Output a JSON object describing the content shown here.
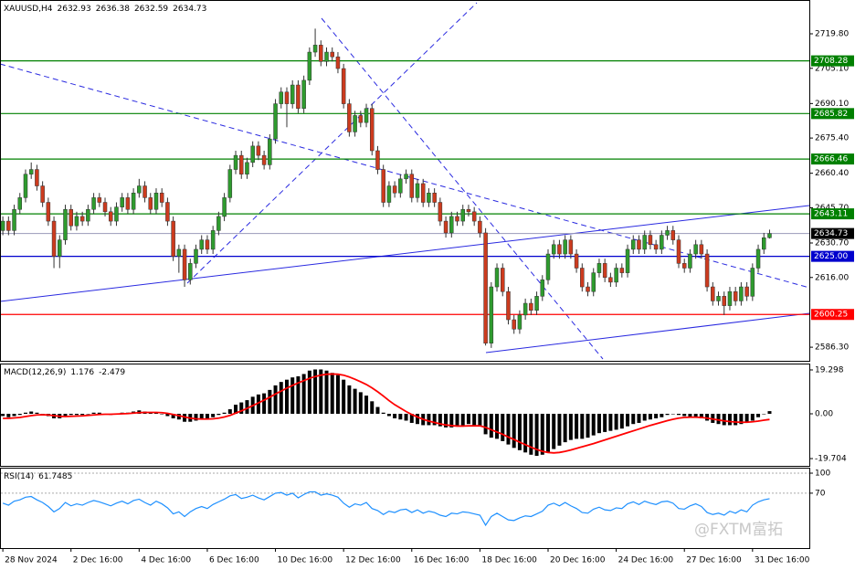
{
  "chart_data": [
    {
      "type": "candlestick",
      "title": "XAUUSD,H4",
      "up_color": "#2e9b2e",
      "down_color": "#cc3b1e",
      "xlim": [
        -0.5,
        142
      ],
      "ylim": [
        2580.5,
        2734.2
      ],
      "yticks": [
        {
          "value": 2719.8,
          "label": "2719.80"
        },
        {
          "value": 2705.1,
          "label": "2705.10"
        },
        {
          "value": 2690.1,
          "label": "2690.10"
        },
        {
          "value": 2675.4,
          "label": "2675.40"
        },
        {
          "value": 2660.4,
          "label": "2660.40"
        },
        {
          "value": 2645.7,
          "label": "2645.70"
        },
        {
          "value": 2630.7,
          "label": "2630.70"
        },
        {
          "value": 2616,
          "label": "2616.00"
        },
        {
          "value": 2586.3,
          "label": "2586.30"
        }
      ],
      "levels": [
        {
          "value": 2708.28,
          "color": "#008000"
        },
        {
          "value": 2685.82,
          "color": "#008000"
        },
        {
          "value": 2666.46,
          "color": "#008000"
        },
        {
          "value": 2643.11,
          "color": "#008000"
        },
        {
          "value": 2625,
          "label": "2625.00",
          "color": "#0000cd"
        },
        {
          "value": 2600.25,
          "color": "#ff0000"
        }
      ],
      "last_price_color": "#9a9ab8",
      "open": [
        2636,
        2640,
        2636,
        2645,
        2650,
        2660,
        2662,
        2655,
        2648,
        2640,
        2625,
        2632,
        2645,
        2638,
        2642,
        2640,
        2645,
        2650,
        2648,
        2644,
        2640,
        2646,
        2650,
        2645,
        2652,
        2655,
        2650,
        2645,
        2652,
        2648,
        2640,
        2625,
        2628,
        2615,
        2622,
        2628,
        2632,
        2628,
        2636,
        2642,
        2650,
        2662,
        2668,
        2660,
        2665,
        2672,
        2668,
        2664,
        2675,
        2690,
        2695,
        2690,
        2698,
        2688,
        2700,
        2712,
        2715,
        2708,
        2712,
        2710,
        2705,
        2690,
        2678,
        2685,
        2682,
        2688,
        2670,
        2662,
        2648,
        2655,
        2652,
        2658,
        2660,
        2650,
        2656,
        2648,
        2652,
        2648,
        2640,
        2635,
        2642,
        2640,
        2645,
        2644,
        2640,
        2635,
        2588,
        2612,
        2620,
        2610,
        2598,
        2594,
        2600,
        2605,
        2602,
        2608,
        2615,
        2626,
        2630,
        2626,
        2632,
        2626,
        2620,
        2612,
        2610,
        2618,
        2622,
        2616,
        2614,
        2620,
        2618,
        2628,
        2632,
        2628,
        2634,
        2630,
        2628,
        2634,
        2636,
        2632,
        2622,
        2620,
        2626,
        2630,
        2626,
        2612,
        2606,
        2608,
        2604,
        2610,
        2606,
        2612,
        2608,
        2620,
        2628,
        2632.93
      ],
      "high": [
        2642,
        2642,
        2647,
        2652,
        2662,
        2665,
        2664,
        2657,
        2650,
        2642,
        2634,
        2647,
        2647,
        2644,
        2644,
        2647,
        2652,
        2652,
        2650,
        2646,
        2648,
        2652,
        2652,
        2654,
        2658,
        2657,
        2652,
        2654,
        2654,
        2650,
        2642,
        2630,
        2630,
        2624,
        2630,
        2634,
        2634,
        2638,
        2644,
        2652,
        2664,
        2670,
        2670,
        2667,
        2674,
        2674,
        2670,
        2677,
        2692,
        2697,
        2697,
        2700,
        2700,
        2702,
        2714,
        2722,
        2717,
        2714,
        2714,
        2712,
        2707,
        2692,
        2687,
        2687,
        2690,
        2690,
        2672,
        2664,
        2657,
        2657,
        2660,
        2662,
        2662,
        2658,
        2658,
        2654,
        2654,
        2650,
        2642,
        2644,
        2644,
        2647,
        2647,
        2646,
        2642,
        2637,
        2614,
        2622,
        2622,
        2612,
        2600,
        2602,
        2607,
        2607,
        2610,
        2617,
        2628,
        2632,
        2632,
        2634,
        2634,
        2628,
        2622,
        2614,
        2620,
        2624,
        2624,
        2618,
        2622,
        2622,
        2630,
        2634,
        2634,
        2636,
        2636,
        2632,
        2636,
        2638,
        2638,
        2634,
        2624,
        2628,
        2632,
        2632,
        2628,
        2614,
        2610,
        2610,
        2612,
        2612,
        2614,
        2614,
        2622,
        2630,
        2635,
        2636.38
      ],
      "low": [
        2634,
        2634,
        2634,
        2643,
        2648,
        2658,
        2653,
        2646,
        2638,
        2620,
        2620,
        2630,
        2636,
        2636,
        2638,
        2638,
        2643,
        2646,
        2642,
        2638,
        2638,
        2644,
        2643,
        2643,
        2650,
        2648,
        2643,
        2643,
        2646,
        2638,
        2623,
        2618,
        2612,
        2613,
        2620,
        2626,
        2626,
        2626,
        2634,
        2640,
        2648,
        2660,
        2658,
        2658,
        2663,
        2666,
        2662,
        2662,
        2673,
        2688,
        2680,
        2688,
        2686,
        2686,
        2698,
        2710,
        2706,
        2706,
        2708,
        2703,
        2688,
        2676,
        2676,
        2680,
        2680,
        2668,
        2660,
        2646,
        2646,
        2650,
        2650,
        2656,
        2648,
        2648,
        2646,
        2646,
        2646,
        2638,
        2633,
        2633,
        2638,
        2638,
        2642,
        2638,
        2633,
        2587,
        2586,
        2610,
        2608,
        2596,
        2592,
        2592,
        2598,
        2600,
        2600,
        2606,
        2613,
        2624,
        2624,
        2624,
        2624,
        2618,
        2610,
        2608,
        2608,
        2616,
        2614,
        2612,
        2612,
        2616,
        2616,
        2626,
        2626,
        2626,
        2628,
        2626,
        2626,
        2632,
        2630,
        2620,
        2618,
        2618,
        2624,
        2624,
        2610,
        2604,
        2604,
        2600,
        2602,
        2604,
        2604,
        2606,
        2606,
        2618,
        2626,
        2632.59
      ],
      "close": [
        2640,
        2636,
        2645,
        2650,
        2660,
        2662,
        2655,
        2648,
        2640,
        2625,
        2632,
        2645,
        2638,
        2642,
        2640,
        2645,
        2650,
        2648,
        2644,
        2640,
        2646,
        2650,
        2645,
        2652,
        2655,
        2650,
        2645,
        2652,
        2648,
        2640,
        2625,
        2628,
        2615,
        2622,
        2628,
        2632,
        2628,
        2636,
        2642,
        2650,
        2662,
        2668,
        2660,
        2665,
        2672,
        2668,
        2664,
        2675,
        2690,
        2695,
        2690,
        2698,
        2688,
        2700,
        2712,
        2715,
        2708,
        2712,
        2710,
        2705,
        2690,
        2678,
        2685,
        2682,
        2688,
        2670,
        2662,
        2648,
        2655,
        2652,
        2658,
        2660,
        2650,
        2656,
        2648,
        2652,
        2648,
        2640,
        2635,
        2642,
        2640,
        2645,
        2644,
        2640,
        2635,
        2588,
        2612,
        2620,
        2610,
        2598,
        2594,
        2600,
        2605,
        2602,
        2608,
        2615,
        2626,
        2630,
        2626,
        2632,
        2626,
        2620,
        2612,
        2610,
        2618,
        2622,
        2616,
        2614,
        2620,
        2618,
        2628,
        2632,
        2628,
        2634,
        2630,
        2628,
        2634,
        2636,
        2632,
        2622,
        2620,
        2626,
        2630,
        2626,
        2612,
        2606,
        2608,
        2604,
        2610,
        2606,
        2612,
        2608,
        2620,
        2628,
        2632.93,
        2634.73
      ]
    },
    {
      "type": "macd",
      "title": "MACD(12,26,9)",
      "color": "#000000",
      "signal_color": "#ff0000",
      "xlim": [
        -0.5,
        142
      ],
      "ylim": [
        -22.9,
        22.1
      ],
      "yticks": [
        19.298,
        {
          "value": 0,
          "label": "0.00"
        },
        -19.704
      ],
      "histogram": [
        -1,
        -1.5,
        -1,
        -0.5,
        0.5,
        1,
        0.5,
        0,
        -1,
        -2,
        -2,
        -1,
        -0.5,
        -0.5,
        -0.5,
        0,
        0.5,
        0.5,
        0,
        -0.5,
        0,
        0.5,
        0.5,
        1,
        1.5,
        1,
        0.5,
        0.5,
        0,
        -1,
        -2,
        -2.5,
        -3.5,
        -3.5,
        -3,
        -2.5,
        -2,
        -1.5,
        -0.5,
        0.5,
        2,
        4,
        5,
        6,
        7.5,
        8.5,
        9,
        10.5,
        12.5,
        14,
        15,
        16,
        16.5,
        17.5,
        19,
        19.5,
        19.5,
        19,
        18,
        17,
        15,
        12.5,
        11,
        9.5,
        8,
        5.5,
        3,
        0.5,
        -1,
        -2,
        -2.5,
        -3,
        -4,
        -4.5,
        -5,
        -5,
        -5,
        -5.5,
        -6,
        -6,
        -5.5,
        -5,
        -4.5,
        -5,
        -5.5,
        -9,
        -10.5,
        -11,
        -12,
        -13.5,
        -15,
        -16,
        -17,
        -18,
        -18.5,
        -18,
        -17,
        -15.5,
        -14,
        -12.5,
        -11.5,
        -11,
        -11,
        -10.5,
        -9.5,
        -8.5,
        -8,
        -7.5,
        -7,
        -6.5,
        -5.5,
        -4.5,
        -4,
        -3,
        -2.5,
        -2,
        -1.5,
        -0.5,
        0,
        -0.5,
        -1,
        -1.5,
        -1.5,
        -2,
        -3,
        -4,
        -4.5,
        -5,
        -5,
        -5,
        -4.5,
        -4,
        -3,
        -1.5,
        0,
        1.176
      ],
      "signal": [
        -2,
        -2,
        -1.8,
        -1.6,
        -1.2,
        -0.8,
        -0.5,
        -0.4,
        -0.5,
        -0.8,
        -1.1,
        -1.2,
        -1.1,
        -1,
        -0.9,
        -0.7,
        -0.5,
        -0.3,
        -0.2,
        -0.2,
        -0.1,
        0,
        0.1,
        0.3,
        0.5,
        0.6,
        0.6,
        0.6,
        0.5,
        0.2,
        -0.3,
        -0.8,
        -1.4,
        -1.9,
        -2.2,
        -2.3,
        -2.3,
        -2.2,
        -1.9,
        -1.4,
        -0.7,
        0.3,
        1.3,
        2.4,
        3.6,
        4.8,
        6,
        7.3,
        8.7,
        10,
        11.3,
        12.5,
        13.6,
        14.6,
        15.6,
        16.4,
        17,
        17.4,
        17.5,
        17.4,
        17,
        16.2,
        15.2,
        14.1,
        12.9,
        11.4,
        9.7,
        7.8,
        5.8,
        4,
        2.5,
        1,
        -0.3,
        -1.4,
        -2.4,
        -3.2,
        -3.8,
        -4.4,
        -4.9,
        -5.2,
        -5.4,
        -5.4,
        -5.3,
        -5.3,
        -5.3,
        -6,
        -7,
        -8,
        -9,
        -10.2,
        -11.3,
        -12.5,
        -13.6,
        -14.7,
        -15.7,
        -16.5,
        -17,
        -17.2,
        -17,
        -16.5,
        -15.9,
        -15.2,
        -14.5,
        -13.8,
        -13.1,
        -12.3,
        -11.5,
        -10.7,
        -9.9,
        -9.1,
        -8.3,
        -7.5,
        -6.7,
        -5.9,
        -5.1,
        -4.4,
        -3.7,
        -3,
        -2.4,
        -1.9,
        -1.6,
        -1.5,
        -1.5,
        -1.6,
        -1.9,
        -2.3,
        -2.7,
        -3.1,
        -3.4,
        -3.6,
        -3.7,
        -3.7,
        -3.5,
        -3.2,
        -2.8,
        -2.479
      ]
    },
    {
      "type": "rsi",
      "title": "RSI(14)",
      "color": "#1e90ff",
      "xlim": [
        -0.5,
        142
      ],
      "ylim": [
        -12.3,
        108.2
      ],
      "yticks": [
        100,
        70
      ],
      "xticks": [
        {
          "value": 0,
          "label": "28 Nov 2024"
        },
        {
          "value": 12,
          "label": "2 Dec 16:00"
        },
        {
          "value": 24,
          "label": "4 Dec 16:00"
        },
        {
          "value": 36,
          "label": "6 Dec 16:00"
        },
        {
          "value": 48,
          "label": "10 Dec 16:00"
        },
        {
          "value": 60,
          "label": "12 Dec 16:00"
        },
        {
          "value": 72,
          "label": "16 Dec 16:00"
        },
        {
          "value": 84,
          "label": "18 Dec 16:00"
        },
        {
          "value": 96,
          "label": "20 Dec 16:00"
        },
        {
          "value": 108,
          "label": "24 Dec 16:00"
        },
        {
          "value": 120,
          "label": "27 Dec 16:00"
        },
        {
          "value": 132,
          "label": "31 Dec 16:00"
        }
      ],
      "values": [
        55,
        52,
        58,
        60,
        64,
        65,
        60,
        56,
        50,
        42,
        47,
        56,
        51,
        54,
        52,
        56,
        59,
        57,
        54,
        51,
        55,
        58,
        54,
        59,
        61,
        56,
        52,
        58,
        54,
        48,
        39,
        42,
        35,
        42,
        47,
        50,
        47,
        53,
        57,
        61,
        66,
        68,
        62,
        64,
        67,
        63,
        60,
        65,
        70,
        71,
        67,
        70,
        63,
        68,
        72,
        72,
        67,
        69,
        67,
        64,
        55,
        49,
        54,
        52,
        56,
        47,
        44,
        38,
        43,
        41,
        45,
        46,
        41,
        45,
        40,
        43,
        41,
        37,
        35,
        40,
        39,
        42,
        41,
        39,
        37,
        22,
        35,
        40,
        35,
        30,
        29,
        33,
        36,
        35,
        39,
        43,
        52,
        55,
        51,
        56,
        51,
        47,
        41,
        40,
        46,
        49,
        45,
        44,
        48,
        47,
        54,
        57,
        53,
        58,
        55,
        53,
        57,
        58,
        55,
        47,
        46,
        51,
        54,
        50,
        41,
        38,
        40,
        37,
        43,
        40,
        45,
        42,
        52,
        57,
        60,
        61.7485
      ]
    }
  ],
  "watermark": "@FXTM富拓"
}
